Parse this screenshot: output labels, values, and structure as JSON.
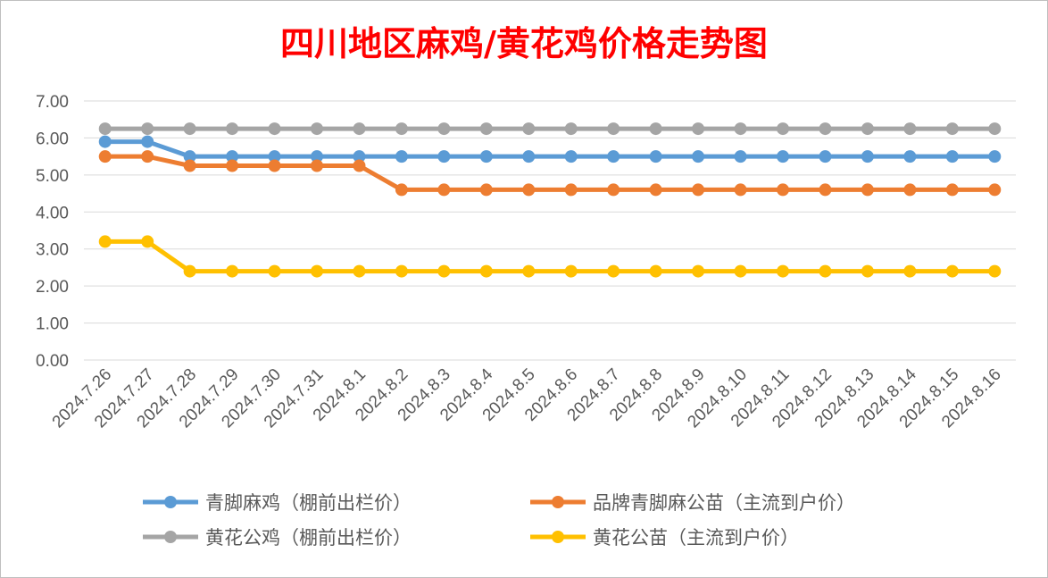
{
  "chart_data": {
    "type": "line",
    "title": "四川地区麻鸡/黄花鸡价格走势图",
    "xlabel": "",
    "ylabel": "",
    "ylim": [
      0,
      7
    ],
    "y_ticks": [
      "0.00",
      "1.00",
      "2.00",
      "3.00",
      "4.00",
      "5.00",
      "6.00",
      "7.00"
    ],
    "grid": true,
    "legend_position": "bottom",
    "categories": [
      "2024.7.26",
      "2024.7.27",
      "2024.7.28",
      "2024.7.29",
      "2024.7.30",
      "2024.7.31",
      "2024.8.1",
      "2024.8.2",
      "2024.8.3",
      "2024.8.4",
      "2024.8.5",
      "2024.8.6",
      "2024.8.7",
      "2024.8.8",
      "2024.8.9",
      "2024.8.10",
      "2024.8.11",
      "2024.8.12",
      "2024.8.13",
      "2024.8.14",
      "2024.8.15",
      "2024.8.16"
    ],
    "series": [
      {
        "name": "青脚麻鸡（棚前出栏价）",
        "color": "#5B9BD5",
        "values": [
          5.9,
          5.9,
          5.5,
          5.5,
          5.5,
          5.5,
          5.5,
          5.5,
          5.5,
          5.5,
          5.5,
          5.5,
          5.5,
          5.5,
          5.5,
          5.5,
          5.5,
          5.5,
          5.5,
          5.5,
          5.5,
          5.5
        ]
      },
      {
        "name": "品牌青脚麻公苗（主流到户价）",
        "color": "#ED7D31",
        "values": [
          5.5,
          5.5,
          5.25,
          5.25,
          5.25,
          5.25,
          5.25,
          4.6,
          4.6,
          4.6,
          4.6,
          4.6,
          4.6,
          4.6,
          4.6,
          4.6,
          4.6,
          4.6,
          4.6,
          4.6,
          4.6,
          4.6
        ]
      },
      {
        "name": "黄花公鸡（棚前出栏价）",
        "color": "#A5A5A5",
        "values": [
          6.25,
          6.25,
          6.25,
          6.25,
          6.25,
          6.25,
          6.25,
          6.25,
          6.25,
          6.25,
          6.25,
          6.25,
          6.25,
          6.25,
          6.25,
          6.25,
          6.25,
          6.25,
          6.25,
          6.25,
          6.25,
          6.25
        ]
      },
      {
        "name": "黄花公苗（主流到户价）",
        "color": "#FFC000",
        "values": [
          3.2,
          3.2,
          2.4,
          2.4,
          2.4,
          2.4,
          2.4,
          2.4,
          2.4,
          2.4,
          2.4,
          2.4,
          2.4,
          2.4,
          2.4,
          2.4,
          2.4,
          2.4,
          2.4,
          2.4,
          2.4,
          2.4
        ]
      }
    ],
    "title_color": "#FF0000",
    "grid_color": "#D9D9D9",
    "text_color": "#595959"
  }
}
